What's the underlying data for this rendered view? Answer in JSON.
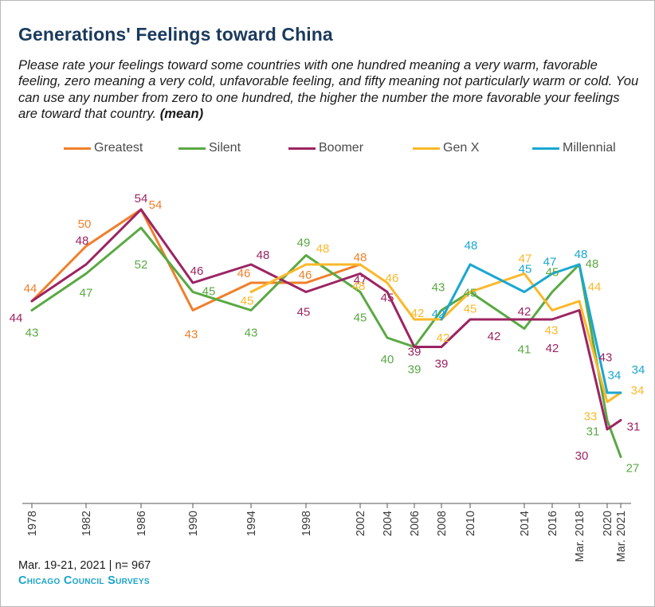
{
  "title": "Generations' Feelings toward China",
  "subtitle": "Please rate your feelings toward some countries with one hundred meaning a very warm, favorable feeling, zero meaning a very cold, unfavorable feeling, and fifty meaning not particularly warm or cold. You can use any number from zero to one hundred, the higher the number the more favorable your feelings are toward that country.",
  "subtitle_emphasis": "(mean)",
  "footnote": "Mar. 19-21, 2021 | n= 967",
  "source": "Chicago Council Surveys",
  "chart_data": {
    "type": "line",
    "categories": [
      "1978",
      "1982",
      "1986",
      "1990",
      "1994",
      "1998",
      "2002",
      "2004",
      "2006",
      "2008",
      "2010",
      "2014",
      "2016",
      "Mar. 2018",
      "2020",
      "Mar. 2021"
    ],
    "ylim": [
      20,
      60
    ],
    "grid": false,
    "legend_position": "top",
    "series": [
      {
        "name": "Greatest",
        "color": "#f07f2a",
        "values": [
          44,
          50,
          54,
          43,
          46,
          46,
          48,
          null,
          null,
          null,
          null,
          null,
          null,
          null,
          null,
          null
        ]
      },
      {
        "name": "Silent",
        "color": "#5aa943",
        "values": [
          43,
          47,
          52,
          45,
          43,
          49,
          45,
          40,
          39,
          43,
          45,
          41,
          45,
          48,
          31,
          27
        ]
      },
      {
        "name": "Boomer",
        "color": "#9c2462",
        "values": [
          44,
          48,
          54,
          46,
          48,
          45,
          47,
          45,
          39,
          39,
          42,
          42,
          42,
          43,
          30,
          31
        ]
      },
      {
        "name": "Gen X",
        "color": "#fbb829",
        "values": [
          null,
          null,
          null,
          null,
          45,
          48,
          48,
          46,
          42,
          42,
          45,
          47,
          43,
          44,
          33,
          34
        ]
      },
      {
        "name": "Millennial",
        "color": "#1aa7d1",
        "values": [
          null,
          null,
          null,
          null,
          null,
          null,
          null,
          null,
          null,
          42,
          48,
          45,
          47,
          48,
          34,
          34
        ]
      }
    ]
  }
}
